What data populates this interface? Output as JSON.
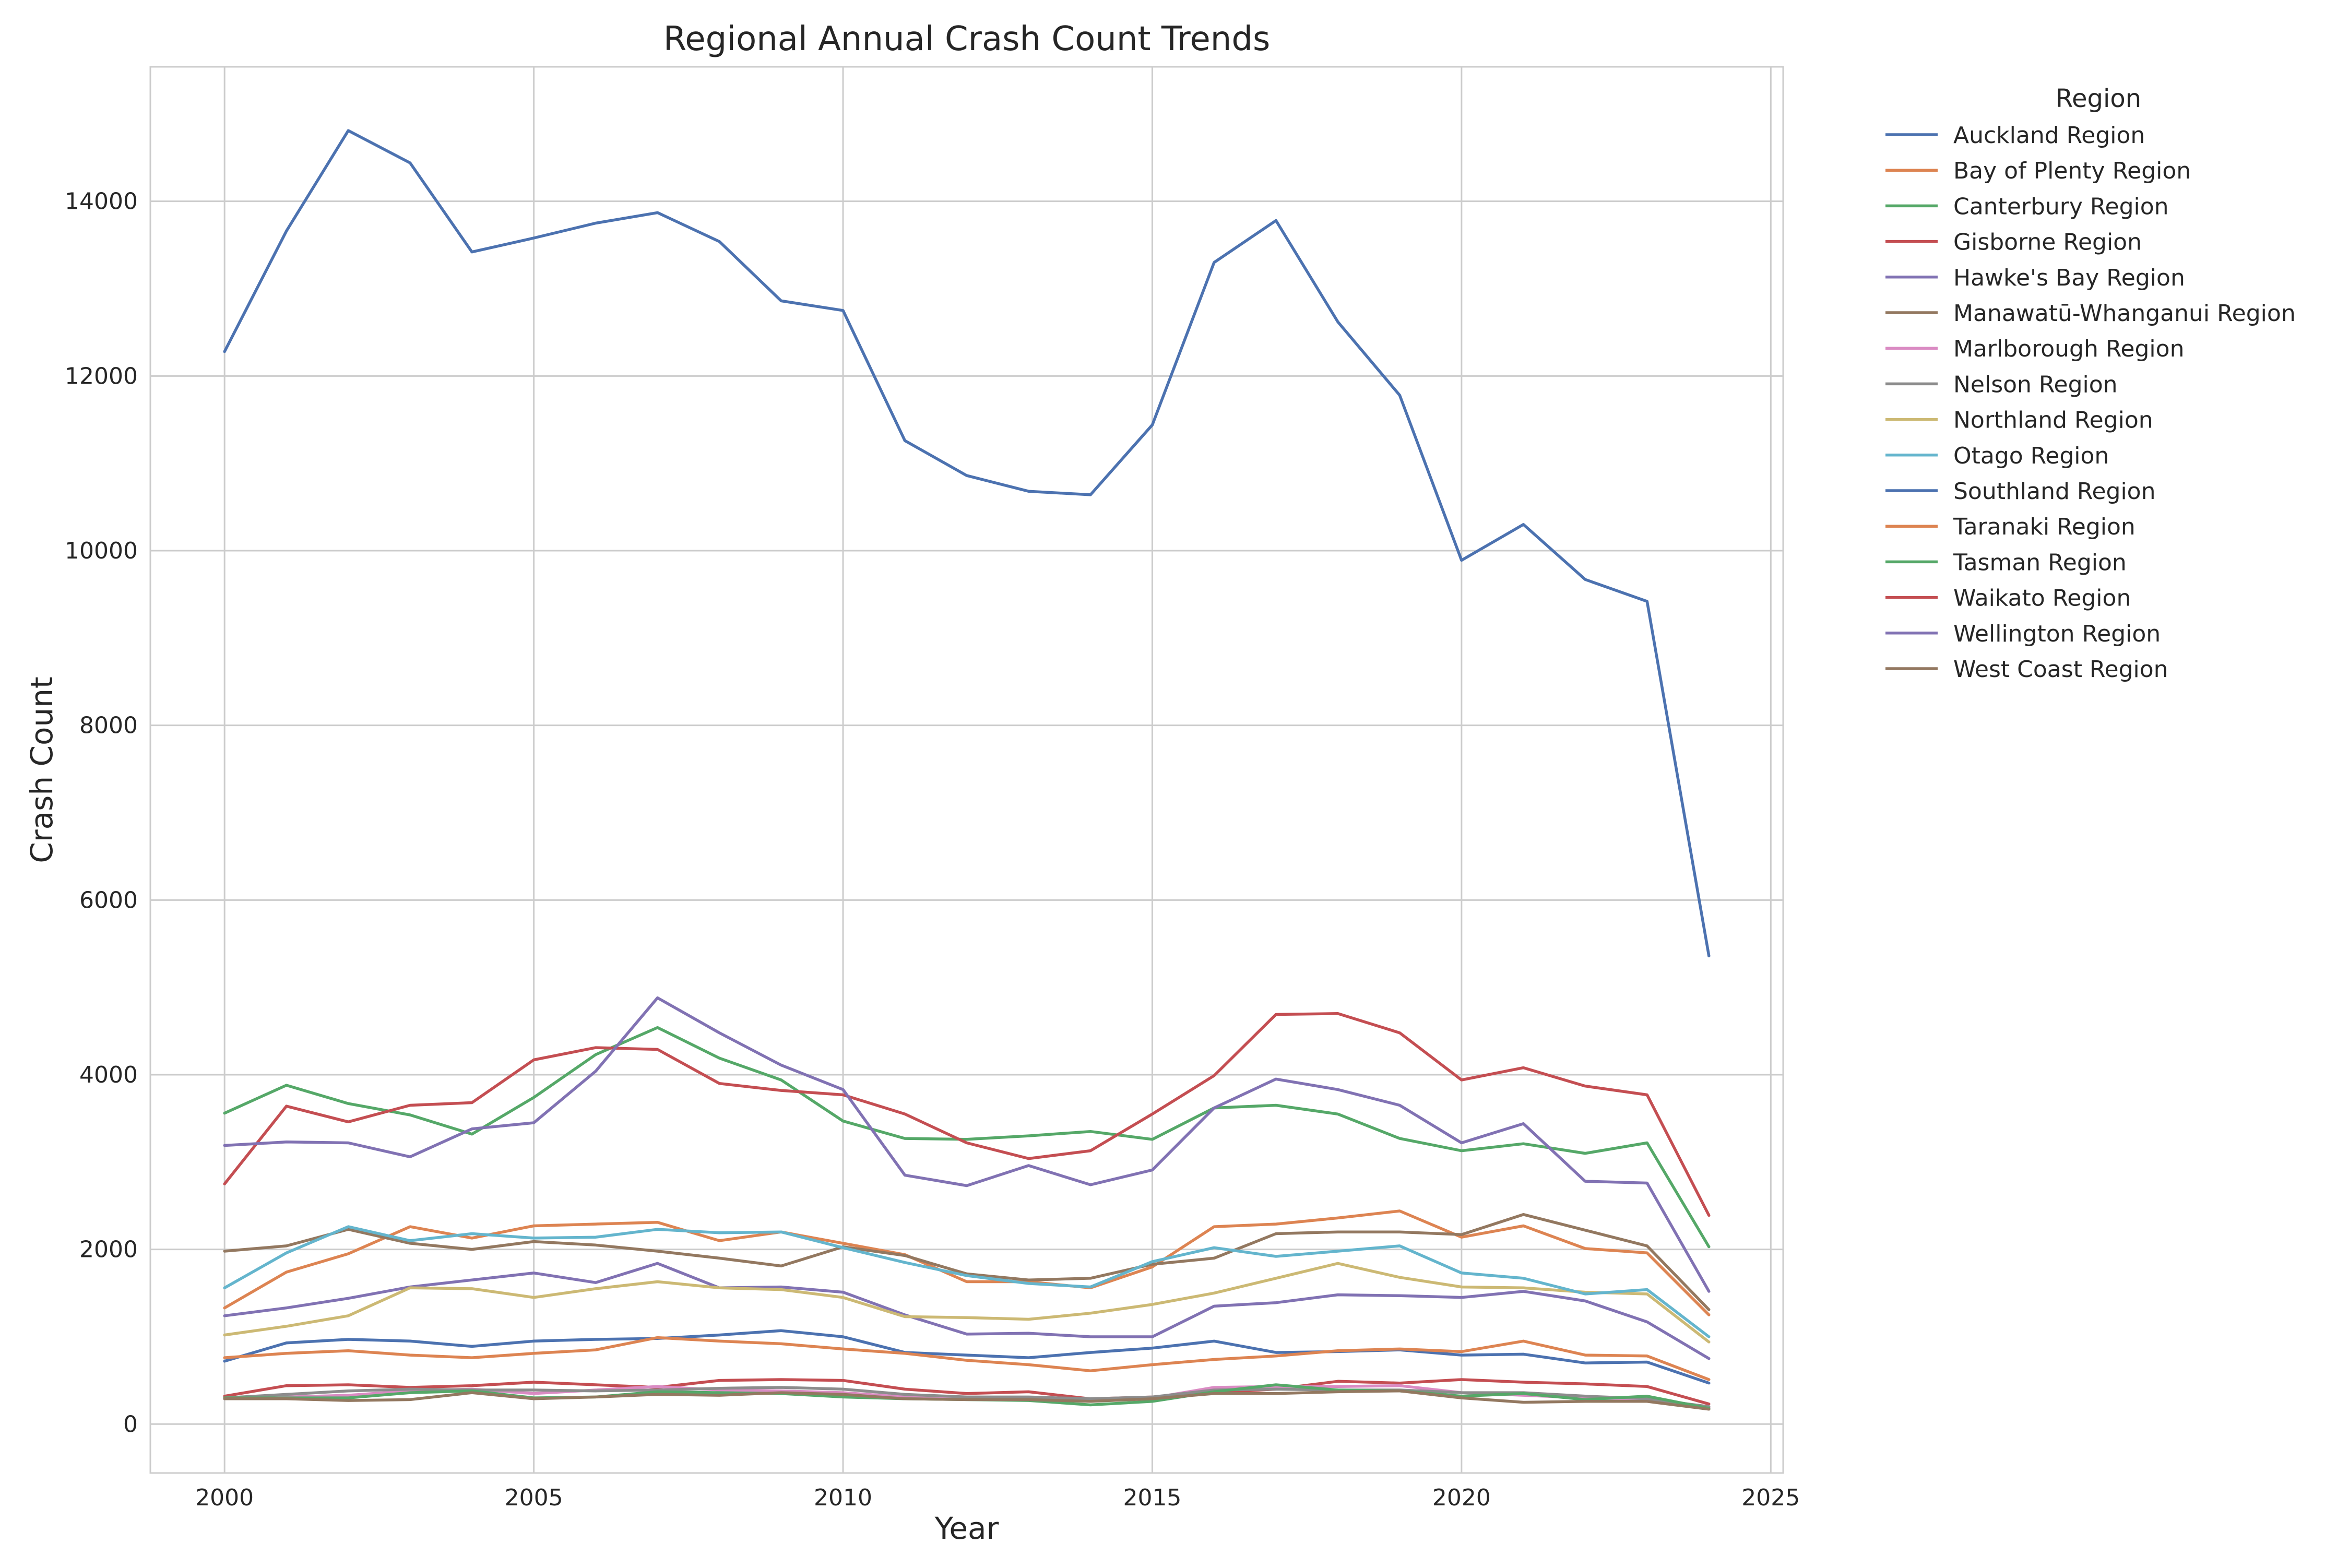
{
  "chart_data": {
    "type": "line",
    "title": "Regional Annual Crash Count Trends",
    "xlabel": "Year",
    "ylabel": "Crash Count",
    "xlim": [
      1998.8,
      2025.2
    ],
    "ylim": [
      -560,
      15540
    ],
    "xticks": [
      2000,
      2005,
      2010,
      2015,
      2020,
      2025
    ],
    "xtick_labels": [
      "2000",
      "2005",
      "2010",
      "2015",
      "2020",
      "2025"
    ],
    "yticks": [
      0,
      2000,
      4000,
      6000,
      8000,
      10000,
      12000,
      14000
    ],
    "ytick_labels": [
      "0",
      "2000",
      "4000",
      "6000",
      "8000",
      "10000",
      "12000",
      "14000"
    ],
    "grid": true,
    "legend": {
      "title": "Region",
      "placement": "outside-right-top"
    },
    "x": [
      2000,
      2001,
      2002,
      2003,
      2004,
      2005,
      2006,
      2007,
      2008,
      2009,
      2010,
      2011,
      2012,
      2013,
      2014,
      2015,
      2016,
      2017,
      2018,
      2019,
      2020,
      2021,
      2022,
      2023,
      2024
    ],
    "series": [
      {
        "name": "Auckland Region",
        "color": "#4c72b0",
        "values": [
          12280,
          13660,
          14810,
          14440,
          13420,
          13580,
          13750,
          13870,
          13540,
          12860,
          12750,
          11260,
          10860,
          10680,
          10640,
          11440,
          13300,
          13780,
          12620,
          11780,
          9890,
          10300,
          9670,
          9420,
          5360
        ]
      },
      {
        "name": "Bay of Plenty Region",
        "color": "#dd8452",
        "values": [
          1330,
          1740,
          1950,
          2260,
          2130,
          2270,
          2290,
          2310,
          2100,
          2200,
          2070,
          1940,
          1630,
          1630,
          1560,
          1800,
          2260,
          2290,
          2360,
          2440,
          2140,
          2270,
          2010,
          1960,
          1250
        ]
      },
      {
        "name": "Canterbury Region",
        "color": "#55a868",
        "values": [
          3560,
          3880,
          3670,
          3540,
          3320,
          3740,
          4230,
          4540,
          4190,
          3940,
          3470,
          3270,
          3260,
          3300,
          3350,
          3260,
          3620,
          3650,
          3550,
          3270,
          3130,
          3210,
          3100,
          3220,
          2030
        ]
      },
      {
        "name": "Gisborne Region",
        "color": "#c44e52",
        "values": [
          320,
          440,
          450,
          420,
          440,
          480,
          450,
          420,
          500,
          510,
          500,
          400,
          350,
          370,
          290,
          310,
          360,
          400,
          490,
          470,
          510,
          480,
          460,
          430,
          230
        ]
      },
      {
        "name": "Hawke's Bay Region",
        "color": "#8172b3",
        "values": [
          1240,
          1330,
          1440,
          1570,
          1650,
          1730,
          1620,
          1840,
          1560,
          1570,
          1510,
          1250,
          1030,
          1040,
          1000,
          1000,
          1350,
          1390,
          1480,
          1470,
          1450,
          1520,
          1410,
          1170,
          750
        ]
      },
      {
        "name": "Manawatū-Whanganui Region",
        "color": "#937860",
        "values": [
          1980,
          2040,
          2230,
          2070,
          2000,
          2090,
          2050,
          1980,
          1900,
          1810,
          2030,
          1930,
          1720,
          1650,
          1670,
          1830,
          1900,
          2180,
          2200,
          2200,
          2170,
          2400,
          2220,
          2040,
          1310
        ]
      },
      {
        "name": "Marlborough Region",
        "color": "#da8bc3",
        "values": [
          290,
          310,
          330,
          380,
          400,
          350,
          390,
          430,
          390,
          380,
          360,
          310,
          290,
          300,
          260,
          300,
          420,
          430,
          430,
          440,
          360,
          330,
          300,
          280,
          190
        ]
      },
      {
        "name": "Nelson Region",
        "color": "#8c8c8c",
        "values": [
          300,
          340,
          380,
          400,
          390,
          390,
          380,
          390,
          410,
          420,
          400,
          340,
          310,
          310,
          290,
          310,
          390,
          400,
          390,
          390,
          360,
          360,
          320,
          290,
          200
        ]
      },
      {
        "name": "Northland Region",
        "color": "#ccb974",
        "values": [
          1020,
          1120,
          1240,
          1560,
          1550,
          1450,
          1550,
          1630,
          1560,
          1540,
          1450,
          1230,
          1220,
          1200,
          1270,
          1370,
          1500,
          1670,
          1840,
          1680,
          1570,
          1560,
          1510,
          1490,
          940
        ]
      },
      {
        "name": "Otago Region",
        "color": "#64b5cd",
        "values": [
          1560,
          1960,
          2260,
          2100,
          2180,
          2130,
          2140,
          2230,
          2190,
          2200,
          2020,
          1850,
          1700,
          1610,
          1570,
          1860,
          2020,
          1920,
          1980,
          2040,
          1730,
          1670,
          1490,
          1540,
          1000
        ]
      },
      {
        "name": "Southland Region",
        "color": "#4c72b0",
        "values": [
          720,
          930,
          970,
          950,
          890,
          950,
          970,
          980,
          1020,
          1070,
          1000,
          820,
          790,
          760,
          820,
          870,
          950,
          820,
          830,
          850,
          790,
          800,
          700,
          710,
          470
        ]
      },
      {
        "name": "Taranaki Region",
        "color": "#dd8452",
        "values": [
          760,
          810,
          840,
          790,
          760,
          810,
          850,
          990,
          950,
          920,
          860,
          810,
          730,
          680,
          610,
          680,
          740,
          780,
          840,
          860,
          830,
          950,
          790,
          780,
          510
        ]
      },
      {
        "name": "Tasman Region",
        "color": "#55a868",
        "values": [
          300,
          300,
          300,
          360,
          380,
          300,
          310,
          370,
          360,
          350,
          310,
          290,
          280,
          270,
          220,
          260,
          370,
          450,
          390,
          380,
          320,
          350,
          280,
          320,
          180
        ]
      },
      {
        "name": "Waikato Region",
        "color": "#c44e52",
        "values": [
          2750,
          3640,
          3460,
          3650,
          3680,
          4170,
          4310,
          4290,
          3900,
          3820,
          3770,
          3550,
          3220,
          3040,
          3130,
          3550,
          3990,
          4690,
          4700,
          4480,
          3940,
          4080,
          3870,
          3770,
          2390
        ]
      },
      {
        "name": "Wellington Region",
        "color": "#8172b3",
        "values": [
          3190,
          3230,
          3220,
          3060,
          3380,
          3450,
          4040,
          4880,
          4480,
          4110,
          3830,
          2850,
          2730,
          2960,
          2740,
          2910,
          3620,
          3950,
          3830,
          3650,
          3220,
          3440,
          2780,
          2760,
          1520
        ]
      },
      {
        "name": "West Coast Region",
        "color": "#937860",
        "values": [
          290,
          290,
          270,
          280,
          360,
          290,
          310,
          340,
          330,
          360,
          340,
          290,
          280,
          280,
          260,
          290,
          350,
          350,
          370,
          380,
          300,
          250,
          260,
          260,
          170
        ]
      }
    ]
  }
}
